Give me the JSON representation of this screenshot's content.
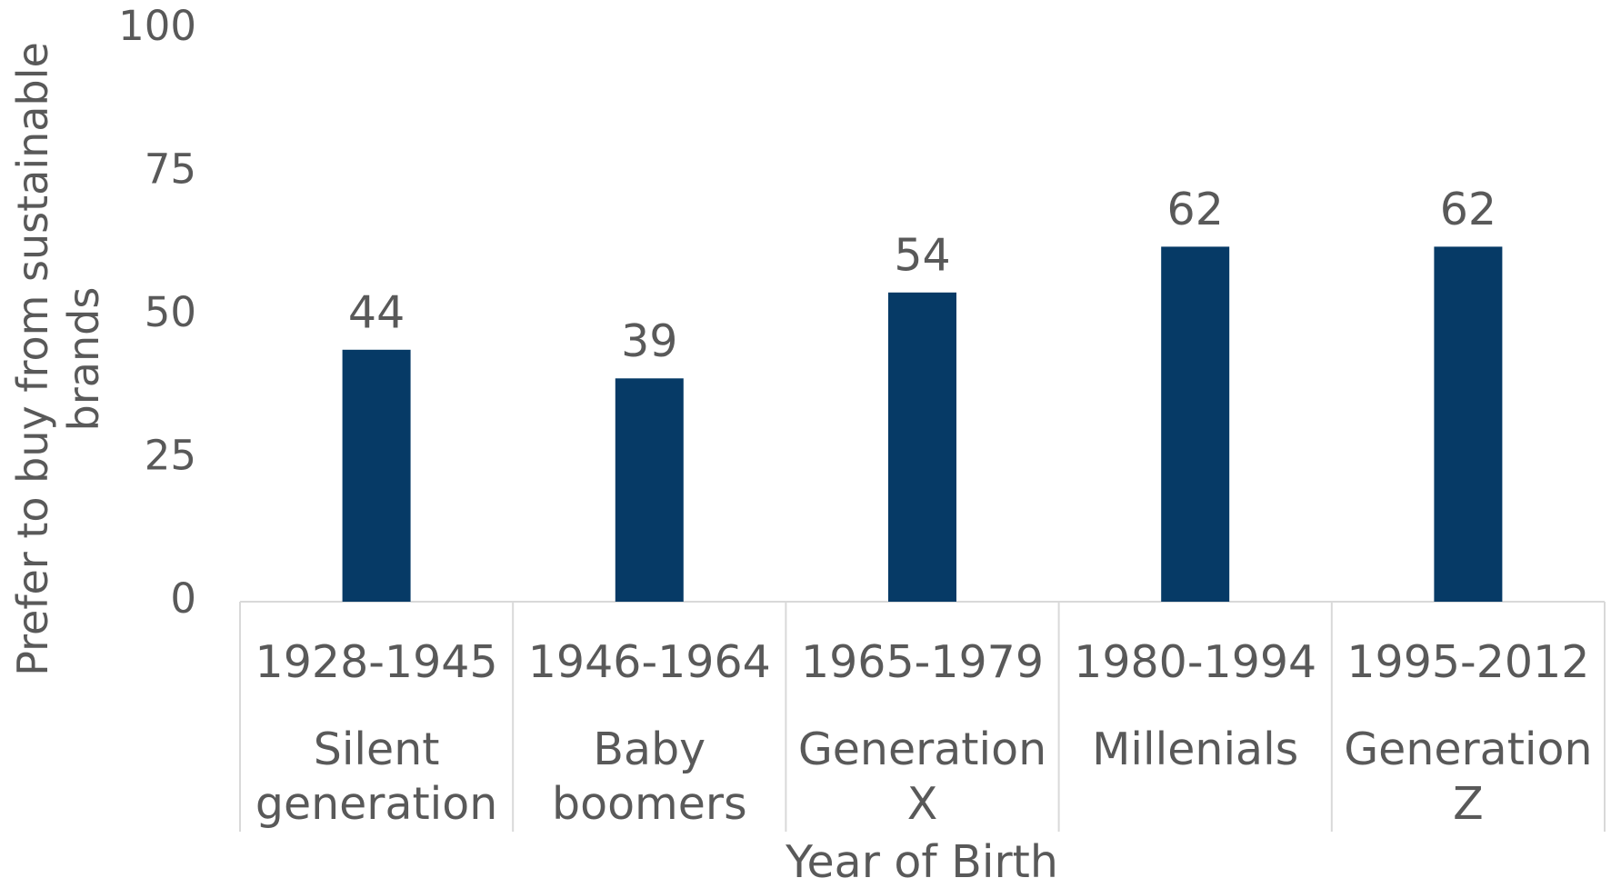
{
  "chart_data": {
    "type": "bar",
    "categories": [
      "1928-1945",
      "1946-1964",
      "1965-1979",
      "1980-1994",
      "1995-2012"
    ],
    "groups": [
      "Silent generation",
      "Baby boomers",
      "Generation X",
      "Millenials",
      "Generation Z"
    ],
    "values": [
      44,
      39,
      54,
      62,
      62
    ],
    "color": "#063a66",
    "ylim": [
      0,
      100
    ],
    "yticks": [
      0,
      25,
      50,
      75,
      100
    ],
    "x_label": "Year of Birth",
    "y_label": "Prefer to buy from sustainable brands",
    "grid": false
  }
}
